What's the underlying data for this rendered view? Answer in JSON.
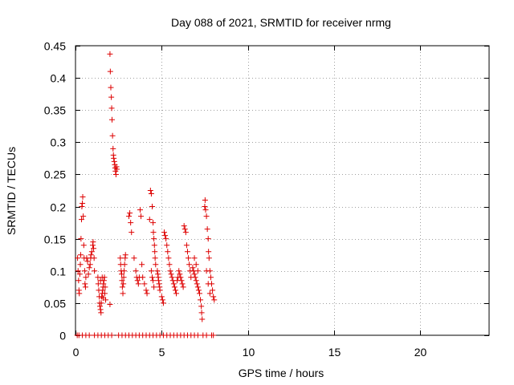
{
  "chart_data": {
    "type": "scatter",
    "title": "Day 088 of 2021, SRMTID for receiver nrmg",
    "xlabel": "GPS time / hours",
    "ylabel": "SRMTID / TECUs",
    "xlim": [
      0,
      24
    ],
    "ylim": [
      0,
      0.45
    ],
    "x_ticks": [
      0,
      5,
      10,
      15,
      20
    ],
    "y_ticks": [
      0,
      0.05,
      0.1,
      0.15,
      0.2,
      0.25,
      0.3,
      0.35,
      0.4,
      0.45
    ],
    "x_tick_labels": [
      "0",
      "5",
      "10",
      "15",
      "20"
    ],
    "y_tick_labels": [
      "0",
      "0.05",
      "0.1",
      "0.15",
      "0.2",
      "0.25",
      "0.3",
      "0.35",
      "0.4",
      "0.45"
    ],
    "grid": true,
    "marker_color": "#dd0000",
    "series": [
      {
        "name": "SRMTID",
        "points": [
          [
            0.1,
            0.0
          ],
          [
            0.2,
            0.0
          ],
          [
            0.4,
            0.0
          ],
          [
            0.6,
            0.0
          ],
          [
            0.8,
            0.0
          ],
          [
            1.1,
            0.0
          ],
          [
            1.3,
            0.0
          ],
          [
            1.5,
            0.0
          ],
          [
            1.7,
            0.0
          ],
          [
            1.9,
            0.0
          ],
          [
            2.1,
            0.0
          ],
          [
            2.5,
            0.0
          ],
          [
            2.7,
            0.0
          ],
          [
            2.9,
            0.0
          ],
          [
            3.1,
            0.0
          ],
          [
            3.3,
            0.0
          ],
          [
            3.5,
            0.0
          ],
          [
            3.7,
            0.0
          ],
          [
            3.9,
            0.0
          ],
          [
            4.1,
            0.0
          ],
          [
            4.3,
            0.0
          ],
          [
            4.5,
            0.0
          ],
          [
            4.7,
            0.0
          ],
          [
            4.9,
            0.0
          ],
          [
            5.1,
            0.0
          ],
          [
            5.3,
            0.0
          ],
          [
            5.5,
            0.0
          ],
          [
            5.7,
            0.0
          ],
          [
            5.9,
            0.0
          ],
          [
            6.1,
            0.0
          ],
          [
            6.3,
            0.0
          ],
          [
            6.5,
            0.0
          ],
          [
            6.7,
            0.0
          ],
          [
            6.9,
            0.0
          ],
          [
            7.1,
            0.0
          ],
          [
            7.4,
            0.0
          ],
          [
            7.6,
            0.0
          ],
          [
            7.9,
            0.0
          ],
          [
            8.0,
            0.0
          ],
          [
            0.12,
            0.12
          ],
          [
            0.15,
            0.1
          ],
          [
            0.18,
            0.085
          ],
          [
            0.2,
            0.07
          ],
          [
            0.22,
            0.065
          ],
          [
            0.25,
            0.095
          ],
          [
            0.28,
            0.11
          ],
          [
            0.3,
            0.125
          ],
          [
            0.32,
            0.15
          ],
          [
            0.35,
            0.18
          ],
          [
            0.37,
            0.2
          ],
          [
            0.4,
            0.205
          ],
          [
            0.42,
            0.215
          ],
          [
            0.45,
            0.185
          ],
          [
            0.48,
            0.14
          ],
          [
            0.5,
            0.12
          ],
          [
            0.53,
            0.1
          ],
          [
            0.55,
            0.08
          ],
          [
            0.58,
            0.075
          ],
          [
            0.6,
            0.09
          ],
          [
            0.65,
            0.12
          ],
          [
            0.8,
            0.105
          ],
          [
            0.85,
            0.11
          ],
          [
            0.88,
            0.12
          ],
          [
            0.9,
            0.125
          ],
          [
            0.95,
            0.13
          ],
          [
            1.0,
            0.14
          ],
          [
            1.02,
            0.145
          ],
          [
            1.05,
            0.135
          ],
          [
            1.08,
            0.12
          ],
          [
            1.1,
            0.1
          ],
          [
            0.75,
            0.095
          ],
          [
            0.7,
            0.115
          ],
          [
            1.3,
            0.09
          ],
          [
            1.32,
            0.08
          ],
          [
            1.35,
            0.07
          ],
          [
            1.38,
            0.06
          ],
          [
            1.4,
            0.05
          ],
          [
            1.42,
            0.045
          ],
          [
            1.45,
            0.04
          ],
          [
            1.48,
            0.035
          ],
          [
            1.5,
            0.05
          ],
          [
            1.52,
            0.06
          ],
          [
            1.55,
            0.065
          ],
          [
            1.58,
            0.07
          ],
          [
            1.6,
            0.075
          ],
          [
            1.62,
            0.08
          ],
          [
            1.65,
            0.085
          ],
          [
            1.68,
            0.09
          ],
          [
            1.7,
            0.065
          ],
          [
            1.72,
            0.075
          ],
          [
            1.75,
            0.055
          ],
          [
            1.45,
            0.085
          ],
          [
            1.55,
            0.09
          ],
          [
            1.6,
            0.058
          ],
          [
            2.0,
            0.437
          ],
          [
            2.02,
            0.41
          ],
          [
            2.05,
            0.385
          ],
          [
            2.08,
            0.37
          ],
          [
            2.1,
            0.353
          ],
          [
            2.12,
            0.335
          ],
          [
            2.15,
            0.31
          ],
          [
            2.18,
            0.29
          ],
          [
            2.2,
            0.28
          ],
          [
            2.22,
            0.275
          ],
          [
            2.25,
            0.27
          ],
          [
            2.28,
            0.265
          ],
          [
            2.3,
            0.26
          ],
          [
            2.32,
            0.255
          ],
          [
            2.35,
            0.25
          ],
          [
            2.38,
            0.262
          ],
          [
            2.4,
            0.258
          ],
          [
            2.0,
            0.048
          ],
          [
            2.6,
            0.12
          ],
          [
            2.62,
            0.11
          ],
          [
            2.65,
            0.1
          ],
          [
            2.68,
            0.095
          ],
          [
            2.7,
            0.085
          ],
          [
            2.72,
            0.075
          ],
          [
            2.75,
            0.065
          ],
          [
            2.78,
            0.08
          ],
          [
            2.8,
            0.09
          ],
          [
            2.82,
            0.1
          ],
          [
            2.85,
            0.11
          ],
          [
            2.88,
            0.12
          ],
          [
            2.9,
            0.125
          ],
          [
            3.1,
            0.185
          ],
          [
            3.15,
            0.19
          ],
          [
            3.2,
            0.175
          ],
          [
            3.25,
            0.16
          ],
          [
            3.4,
            0.12
          ],
          [
            3.5,
            0.1
          ],
          [
            3.6,
            0.085
          ],
          [
            3.7,
            0.09
          ],
          [
            3.75,
            0.195
          ],
          [
            3.8,
            0.185
          ],
          [
            3.85,
            0.11
          ],
          [
            3.9,
            0.09
          ],
          [
            4.0,
            0.08
          ],
          [
            4.1,
            0.07
          ],
          [
            4.15,
            0.065
          ],
          [
            3.55,
            0.09
          ],
          [
            3.65,
            0.08
          ],
          [
            4.3,
            0.18
          ],
          [
            4.35,
            0.225
          ],
          [
            4.4,
            0.22
          ],
          [
            4.45,
            0.2
          ],
          [
            4.5,
            0.175
          ],
          [
            4.52,
            0.16
          ],
          [
            4.55,
            0.15
          ],
          [
            4.58,
            0.14
          ],
          [
            4.6,
            0.13
          ],
          [
            4.62,
            0.12
          ],
          [
            4.65,
            0.11
          ],
          [
            4.4,
            0.1
          ],
          [
            4.45,
            0.09
          ],
          [
            4.5,
            0.085
          ],
          [
            4.55,
            0.075
          ],
          [
            4.75,
            0.1
          ],
          [
            4.78,
            0.095
          ],
          [
            4.8,
            0.09
          ],
          [
            4.82,
            0.085
          ],
          [
            4.85,
            0.08
          ],
          [
            4.88,
            0.075
          ],
          [
            4.9,
            0.07
          ],
          [
            5.0,
            0.06
          ],
          [
            5.05,
            0.055
          ],
          [
            5.1,
            0.05
          ],
          [
            5.15,
            0.16
          ],
          [
            5.2,
            0.155
          ],
          [
            5.25,
            0.15
          ],
          [
            5.3,
            0.14
          ],
          [
            5.35,
            0.13
          ],
          [
            5.4,
            0.12
          ],
          [
            5.45,
            0.11
          ],
          [
            5.5,
            0.1
          ],
          [
            5.55,
            0.095
          ],
          [
            5.6,
            0.09
          ],
          [
            5.65,
            0.085
          ],
          [
            5.7,
            0.08
          ],
          [
            5.75,
            0.075
          ],
          [
            5.8,
            0.07
          ],
          [
            5.85,
            0.065
          ],
          [
            5.9,
            0.085
          ],
          [
            5.95,
            0.09
          ],
          [
            6.0,
            0.1
          ],
          [
            6.05,
            0.095
          ],
          [
            6.1,
            0.09
          ],
          [
            6.15,
            0.085
          ],
          [
            6.2,
            0.08
          ],
          [
            6.25,
            0.075
          ],
          [
            6.3,
            0.17
          ],
          [
            6.35,
            0.165
          ],
          [
            6.4,
            0.16
          ],
          [
            6.45,
            0.14
          ],
          [
            6.5,
            0.13
          ],
          [
            6.55,
            0.12
          ],
          [
            6.6,
            0.11
          ],
          [
            6.65,
            0.1
          ],
          [
            6.7,
            0.09
          ],
          [
            6.8,
            0.105
          ],
          [
            6.85,
            0.1
          ],
          [
            6.9,
            0.095
          ],
          [
            6.95,
            0.09
          ],
          [
            7.0,
            0.085
          ],
          [
            7.05,
            0.08
          ],
          [
            7.1,
            0.075
          ],
          [
            7.15,
            0.07
          ],
          [
            7.2,
            0.065
          ],
          [
            7.25,
            0.055
          ],
          [
            7.3,
            0.045
          ],
          [
            7.32,
            0.035
          ],
          [
            7.35,
            0.025
          ],
          [
            7.0,
            0.11
          ],
          [
            6.9,
            0.12
          ],
          [
            7.1,
            0.1
          ],
          [
            7.5,
            0.2
          ],
          [
            7.52,
            0.21
          ],
          [
            7.55,
            0.195
          ],
          [
            7.6,
            0.185
          ],
          [
            7.65,
            0.165
          ],
          [
            7.7,
            0.15
          ],
          [
            7.72,
            0.13
          ],
          [
            7.75,
            0.12
          ],
          [
            7.8,
            0.1
          ],
          [
            7.85,
            0.09
          ],
          [
            7.9,
            0.08
          ],
          [
            7.95,
            0.07
          ],
          [
            8.0,
            0.06
          ],
          [
            8.05,
            0.055
          ],
          [
            7.6,
            0.1
          ],
          [
            7.7,
            0.08
          ],
          [
            7.8,
            0.065
          ]
        ]
      }
    ]
  }
}
